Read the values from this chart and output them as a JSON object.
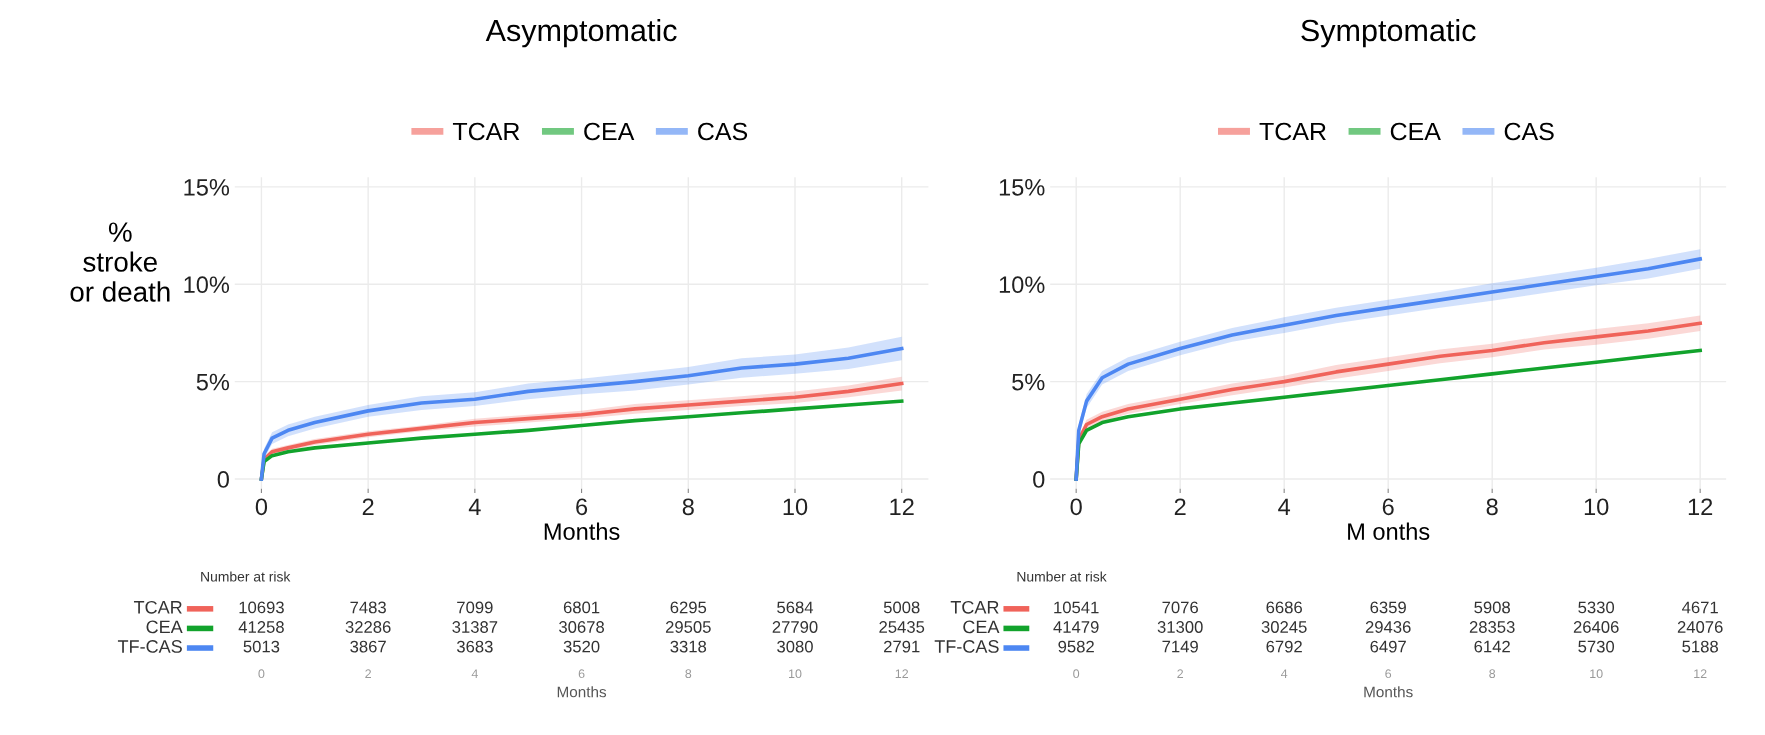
{
  "chart_data": [
    {
      "type": "line",
      "title": "Asymptomatic",
      "ylabel": "%\nstroke\nor death",
      "xlabel": "Months",
      "x": [
        0,
        0.05,
        0.2,
        0.5,
        1,
        2,
        3,
        4,
        5,
        6,
        7,
        8,
        9,
        10,
        11,
        12
      ],
      "xlim": [
        -0.5,
        12.5
      ],
      "xticks": [
        0,
        2,
        4,
        6,
        8,
        10,
        12
      ],
      "ylim": [
        -0.5,
        15.5
      ],
      "yticks": [
        {
          "value": 0,
          "label": "0"
        },
        {
          "value": 5,
          "label": "5%"
        },
        {
          "value": 10,
          "label": "10%"
        },
        {
          "value": 15,
          "label": "15%"
        }
      ],
      "grid": true,
      "legend": "top",
      "series": [
        {
          "name": "TCAR",
          "color": "#f0635a",
          "values": [
            0,
            1.0,
            1.4,
            1.6,
            1.9,
            2.3,
            2.6,
            2.9,
            3.1,
            3.3,
            3.6,
            3.8,
            4.0,
            4.2,
            4.5,
            4.9
          ],
          "lower": [
            0,
            0.85,
            1.25,
            1.45,
            1.75,
            2.15,
            2.45,
            2.7,
            2.9,
            3.1,
            3.35,
            3.55,
            3.75,
            3.9,
            4.2,
            4.55
          ],
          "upper": [
            0,
            1.15,
            1.55,
            1.75,
            2.05,
            2.45,
            2.75,
            3.1,
            3.3,
            3.5,
            3.85,
            4.05,
            4.25,
            4.5,
            4.8,
            5.25
          ]
        },
        {
          "name": "CEA",
          "color": "#12a32c",
          "values": [
            0,
            0.9,
            1.2,
            1.4,
            1.6,
            1.85,
            2.1,
            2.3,
            2.5,
            2.75,
            3.0,
            3.2,
            3.4,
            3.6,
            3.8,
            4.0
          ]
        },
        {
          "name": "CAS",
          "color": "#4d87f2",
          "values": [
            0,
            1.3,
            2.1,
            2.5,
            2.9,
            3.5,
            3.9,
            4.1,
            4.5,
            4.75,
            5.0,
            5.3,
            5.7,
            5.9,
            6.2,
            6.7
          ],
          "lower": [
            0,
            1.05,
            1.8,
            2.2,
            2.6,
            3.2,
            3.55,
            3.75,
            4.1,
            4.35,
            4.55,
            4.85,
            5.2,
            5.4,
            5.65,
            6.1
          ],
          "upper": [
            0,
            1.55,
            2.4,
            2.8,
            3.2,
            3.8,
            4.25,
            4.45,
            4.9,
            5.15,
            5.45,
            5.75,
            6.2,
            6.4,
            6.75,
            7.3
          ]
        }
      ]
    },
    {
      "type": "heatmap",
      "title": "Number at risk",
      "xlabel": "Months",
      "categories": [
        "0",
        "2",
        "4",
        "6",
        "8",
        "10",
        "12"
      ],
      "y_categories": [
        "TCAR",
        "CEA",
        "TF-CAS"
      ],
      "colors": [
        "#f0635a",
        "#12a32c",
        "#4d87f2"
      ],
      "data_labels": true,
      "cells": [
        [
          10693,
          7483,
          7099,
          6801,
          6295,
          5684,
          5008
        ],
        [
          41258,
          32286,
          31387,
          30678,
          29505,
          27790,
          25435
        ],
        [
          5013,
          3867,
          3683,
          3520,
          3318,
          3080,
          2791
        ]
      ]
    },
    {
      "type": "line",
      "title": "Symptomatic",
      "xlabel": "M onths",
      "x": [
        0,
        0.05,
        0.2,
        0.5,
        1,
        2,
        3,
        4,
        5,
        6,
        7,
        8,
        9,
        10,
        11,
        12
      ],
      "xlim": [
        -0.5,
        12.5
      ],
      "xticks": [
        0,
        2,
        4,
        6,
        8,
        10,
        12
      ],
      "ylim": [
        -0.5,
        15.5
      ],
      "yticks": [
        {
          "value": 0,
          "label": "0"
        },
        {
          "value": 5,
          "label": "5%"
        },
        {
          "value": 10,
          "label": "10%"
        },
        {
          "value": 15,
          "label": "15%"
        }
      ],
      "grid": true,
      "legend": "top",
      "series": [
        {
          "name": "TCAR",
          "color": "#f0635a",
          "values": [
            0,
            2.0,
            2.8,
            3.2,
            3.6,
            4.1,
            4.6,
            5.0,
            5.5,
            5.9,
            6.3,
            6.6,
            7.0,
            7.3,
            7.6,
            8.0
          ],
          "lower": [
            0,
            1.75,
            2.55,
            2.95,
            3.35,
            3.85,
            4.3,
            4.7,
            5.15,
            5.55,
            5.95,
            6.25,
            6.65,
            6.9,
            7.2,
            7.6
          ],
          "upper": [
            0,
            2.25,
            3.05,
            3.45,
            3.85,
            4.35,
            4.9,
            5.3,
            5.85,
            6.25,
            6.65,
            6.95,
            7.35,
            7.7,
            8.0,
            8.4
          ]
        },
        {
          "name": "CEA",
          "color": "#12a32c",
          "values": [
            0,
            1.8,
            2.5,
            2.9,
            3.2,
            3.6,
            3.9,
            4.2,
            4.5,
            4.8,
            5.1,
            5.4,
            5.7,
            6.0,
            6.3,
            6.6
          ]
        },
        {
          "name": "CAS",
          "color": "#4d87f2",
          "values": [
            0,
            2.5,
            4.0,
            5.2,
            5.9,
            6.7,
            7.4,
            7.9,
            8.4,
            8.8,
            9.2,
            9.6,
            10.0,
            10.4,
            10.8,
            11.3
          ],
          "lower": [
            0,
            2.2,
            3.65,
            4.85,
            5.55,
            6.35,
            7.05,
            7.5,
            8.0,
            8.4,
            8.8,
            9.15,
            9.55,
            9.95,
            10.3,
            10.8
          ],
          "upper": [
            0,
            2.8,
            4.35,
            5.55,
            6.25,
            7.05,
            7.75,
            8.3,
            8.8,
            9.2,
            9.6,
            10.05,
            10.45,
            10.85,
            11.3,
            11.8
          ]
        }
      ]
    },
    {
      "type": "heatmap",
      "title": "Number at risk",
      "xlabel": "Months",
      "categories": [
        "0",
        "2",
        "4",
        "6",
        "8",
        "10",
        "12"
      ],
      "y_categories": [
        "TCAR",
        "CEA",
        "TF-CAS"
      ],
      "colors": [
        "#f0635a",
        "#12a32c",
        "#4d87f2"
      ],
      "data_labels": true,
      "cells": [
        [
          10541,
          7076,
          6686,
          6359,
          5908,
          5330,
          4671
        ],
        [
          41479,
          31300,
          30245,
          29436,
          28353,
          26406,
          24076
        ],
        [
          9582,
          7149,
          6792,
          6497,
          6142,
          5730,
          5188
        ]
      ]
    }
  ]
}
